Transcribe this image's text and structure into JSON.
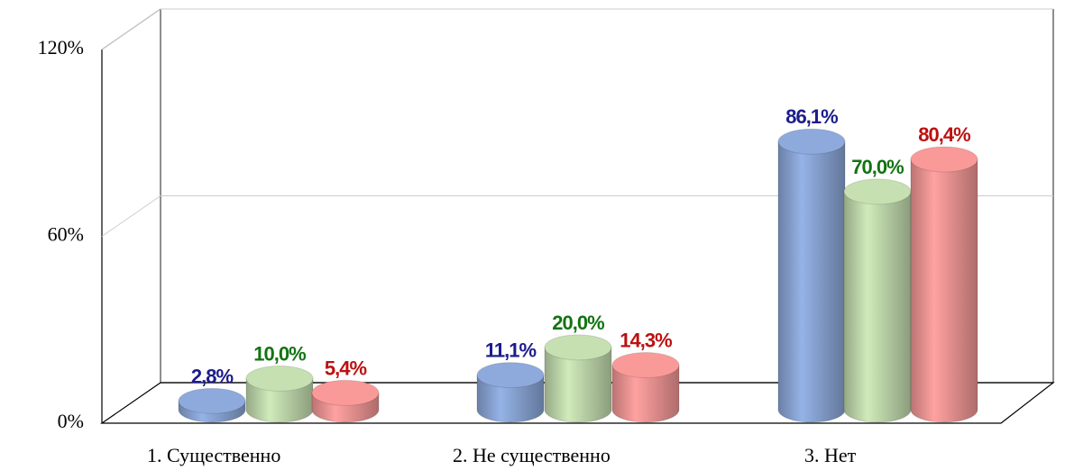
{
  "chart_data": {
    "type": "bar3d",
    "categories": [
      "1. Существенно",
      "2. Не существенно",
      "3. Нет"
    ],
    "series": [
      {
        "color": "#8eaadc",
        "label_color": "#1c1c8c",
        "values": [
          2.8,
          11.1,
          86.1
        ],
        "value_labels": [
          "2,8%",
          "11,1%",
          "86,1%"
        ]
      },
      {
        "color": "#c6e0b2",
        "label_color": "#127312",
        "values": [
          10.0,
          20.0,
          70.0
        ],
        "value_labels": [
          "10,0%",
          "20,0%",
          "70,0%"
        ]
      },
      {
        "color": "#f99a99",
        "label_color": "#bd1010",
        "values": [
          5.4,
          14.3,
          80.4
        ],
        "value_labels": [
          "5,4%",
          "14,3%",
          "80,4%"
        ]
      }
    ],
    "ylim": [
      0,
      120
    ],
    "yticks": [
      {
        "value": 0,
        "label": "0%"
      },
      {
        "value": 60,
        "label": "60%"
      },
      {
        "value": 120,
        "label": "120%"
      }
    ],
    "grid": true
  }
}
